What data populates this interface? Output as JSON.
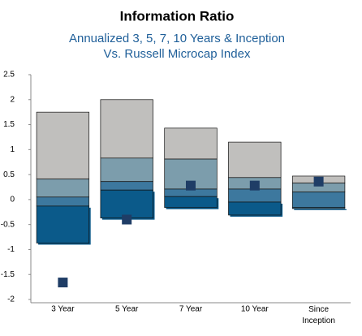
{
  "chart_data": {
    "type": "floating-box",
    "title": "Information Ratio",
    "subtitle": [
      "Annualized 3, 5, 7, 10 Years & Inception",
      "Vs. Russell Microcap Index"
    ],
    "categories": [
      "3 Year",
      "5 Year",
      "7 Year",
      "10 Year",
      "Since Inception"
    ],
    "bounds": [
      [
        1.75,
        0.41,
        0.05,
        -0.13,
        -0.87
      ],
      [
        2.0,
        0.83,
        0.36,
        0.19,
        -0.37
      ],
      [
        1.43,
        0.81,
        0.21,
        0.06,
        -0.16
      ],
      [
        1.15,
        0.44,
        0.21,
        -0.05,
        -0.31
      ],
      [
        0.47,
        0.33,
        0.15,
        -0.16,
        -0.18
      ]
    ],
    "band_colors": [
      "#c0bfbd",
      "#7c9dac",
      "#3d789e",
      "#0b5a8a"
    ],
    "marker": {
      "color": "#1f3d66",
      "values": [
        -1.66,
        -0.4,
        0.28,
        0.28,
        0.36
      ]
    },
    "ylim": [
      -2,
      2.5
    ],
    "yticks": [
      -2,
      -1.5,
      -1,
      -0.5,
      0,
      0.5,
      1,
      1.5,
      2,
      2.5
    ]
  }
}
